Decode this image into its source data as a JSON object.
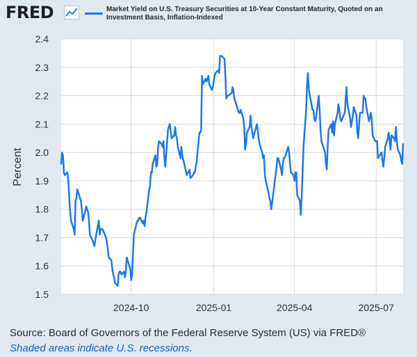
{
  "brand": {
    "name": "FRED"
  },
  "legend": {
    "label": "Market Yield on U.S. Treasury Securities at 10-Year Constant Maturity, Quoted on an Investment Basis, Inflation-Indexed",
    "color": "#1f77e8"
  },
  "footer": {
    "source": "Source: Board of Governors of the Federal Reserve System (US) via FRED®",
    "note": "Shaded areas indicate U.S. recessions."
  },
  "chart_data": {
    "type": "line",
    "ylabel": "Percent",
    "xlabel": "",
    "ylim": [
      1.5,
      2.4
    ],
    "yticks": [
      1.5,
      1.6,
      1.7,
      1.8,
      1.9,
      2.0,
      2.1,
      2.2,
      2.3,
      2.4
    ],
    "xlim": [
      "2024-07-15",
      "2025-07-31"
    ],
    "xticks": [
      "2024-10-01",
      "2025-01-01",
      "2025-04-01",
      "2025-07-01"
    ],
    "xtick_labels": [
      "2024-10",
      "2025-01",
      "2025-04",
      "2025-07"
    ],
    "grid": true,
    "series": [
      {
        "name": "Market Yield on U.S. Treasury Securities at 10-Year Constant Maturity, Quoted on an Investment Basis, Inflation-Indexed",
        "color": "#1f77e8",
        "points": [
          [
            "2024-07-15",
            1.96
          ],
          [
            "2024-07-16",
            2.0
          ],
          [
            "2024-07-17",
            1.99
          ],
          [
            "2024-07-18",
            1.93
          ],
          [
            "2024-07-19",
            1.92
          ],
          [
            "2024-07-22",
            1.93
          ],
          [
            "2024-07-23",
            1.9
          ],
          [
            "2024-07-24",
            1.84
          ],
          [
            "2024-07-25",
            1.79
          ],
          [
            "2024-07-26",
            1.76
          ],
          [
            "2024-07-29",
            1.73
          ],
          [
            "2024-07-30",
            1.71
          ],
          [
            "2024-07-31",
            1.83
          ],
          [
            "2024-08-01",
            1.84
          ],
          [
            "2024-08-02",
            1.87
          ],
          [
            "2024-08-05",
            1.84
          ],
          [
            "2024-08-06",
            1.83
          ],
          [
            "2024-08-07",
            1.8
          ],
          [
            "2024-08-08",
            1.76
          ],
          [
            "2024-08-09",
            1.77
          ],
          [
            "2024-08-12",
            1.81
          ],
          [
            "2024-08-13",
            1.8
          ],
          [
            "2024-08-14",
            1.79
          ],
          [
            "2024-08-15",
            1.76
          ],
          [
            "2024-08-16",
            1.71
          ],
          [
            "2024-08-19",
            1.69
          ],
          [
            "2024-08-20",
            1.68
          ],
          [
            "2024-08-21",
            1.67
          ],
          [
            "2024-08-22",
            1.69
          ],
          [
            "2024-08-23",
            1.71
          ],
          [
            "2024-08-26",
            1.76
          ],
          [
            "2024-08-27",
            1.71
          ],
          [
            "2024-08-28",
            1.73
          ],
          [
            "2024-08-29",
            1.73
          ],
          [
            "2024-08-30",
            1.73
          ],
          [
            "2024-09-03",
            1.7
          ],
          [
            "2024-09-04",
            1.68
          ],
          [
            "2024-09-05",
            1.66
          ],
          [
            "2024-09-06",
            1.63
          ],
          [
            "2024-09-09",
            1.62
          ],
          [
            "2024-09-10",
            1.59
          ],
          [
            "2024-09-11",
            1.57
          ],
          [
            "2024-09-12",
            1.56
          ],
          [
            "2024-09-13",
            1.54
          ],
          [
            "2024-09-16",
            1.53
          ],
          [
            "2024-09-17",
            1.57
          ],
          [
            "2024-09-18",
            1.58
          ],
          [
            "2024-09-19",
            1.58
          ],
          [
            "2024-09-20",
            1.57
          ],
          [
            "2024-09-23",
            1.58
          ],
          [
            "2024-09-24",
            1.56
          ],
          [
            "2024-09-25",
            1.58
          ],
          [
            "2024-09-26",
            1.63
          ],
          [
            "2024-09-27",
            1.62
          ],
          [
            "2024-09-30",
            1.59
          ],
          [
            "2024-10-01",
            1.55
          ],
          [
            "2024-10-02",
            1.57
          ],
          [
            "2024-10-03",
            1.64
          ],
          [
            "2024-10-04",
            1.71
          ],
          [
            "2024-10-07",
            1.75
          ],
          [
            "2024-10-08",
            1.76
          ],
          [
            "2024-10-09",
            1.76
          ],
          [
            "2024-10-10",
            1.77
          ],
          [
            "2024-10-11",
            1.77
          ],
          [
            "2024-10-14",
            1.75
          ],
          [
            "2024-10-15",
            1.76
          ],
          [
            "2024-10-16",
            1.74
          ],
          [
            "2024-10-17",
            1.77
          ],
          [
            "2024-10-18",
            1.79
          ],
          [
            "2024-10-21",
            1.87
          ],
          [
            "2024-10-22",
            1.88
          ],
          [
            "2024-10-23",
            1.93
          ],
          [
            "2024-10-24",
            1.93
          ],
          [
            "2024-10-25",
            1.96
          ],
          [
            "2024-10-28",
            1.99
          ],
          [
            "2024-10-29",
            1.95
          ],
          [
            "2024-10-30",
            1.96
          ],
          [
            "2024-10-31",
            2.02
          ],
          [
            "2024-11-01",
            2.04
          ],
          [
            "2024-11-04",
            2.03
          ],
          [
            "2024-11-05",
            2.02
          ],
          [
            "2024-11-06",
            2.04
          ],
          [
            "2024-11-07",
            1.98
          ],
          [
            "2024-11-08",
            1.95
          ],
          [
            "2024-11-11",
            2.08
          ],
          [
            "2024-11-12",
            2.09
          ],
          [
            "2024-11-13",
            2.1
          ],
          [
            "2024-11-14",
            2.08
          ],
          [
            "2024-11-15",
            2.05
          ],
          [
            "2024-11-18",
            2.06
          ],
          [
            "2024-11-19",
            2.09
          ],
          [
            "2024-11-20",
            2.06
          ],
          [
            "2024-11-21",
            2.05
          ],
          [
            "2024-11-22",
            2.02
          ],
          [
            "2024-11-25",
            1.98
          ],
          [
            "2024-11-26",
            2.02
          ],
          [
            "2024-11-27",
            1.99
          ],
          [
            "2024-12-02",
            1.92
          ],
          [
            "2024-12-03",
            1.93
          ],
          [
            "2024-12-04",
            1.93
          ],
          [
            "2024-12-05",
            1.94
          ],
          [
            "2024-12-06",
            1.91
          ],
          [
            "2024-12-09",
            1.92
          ],
          [
            "2024-12-10",
            1.93
          ],
          [
            "2024-12-11",
            1.93
          ],
          [
            "2024-12-12",
            1.95
          ],
          [
            "2024-12-13",
            1.97
          ],
          [
            "2024-12-16",
            2.07
          ],
          [
            "2024-12-17",
            2.07
          ],
          [
            "2024-12-18",
            2.08
          ],
          [
            "2024-12-19",
            2.27
          ],
          [
            "2024-12-20",
            2.24
          ],
          [
            "2024-12-23",
            2.26
          ],
          [
            "2024-12-24",
            2.25
          ],
          [
            "2024-12-26",
            2.27
          ],
          [
            "2024-12-27",
            2.24
          ],
          [
            "2024-12-30",
            2.22
          ],
          [
            "2024-12-31",
            2.23
          ],
          [
            "2025-01-02",
            2.27
          ],
          [
            "2025-01-03",
            2.28
          ],
          [
            "2025-01-06",
            2.29
          ],
          [
            "2025-01-07",
            2.28
          ],
          [
            "2025-01-08",
            2.34
          ],
          [
            "2025-01-09",
            2.34
          ],
          [
            "2025-01-10",
            2.34
          ],
          [
            "2025-01-13",
            2.33
          ],
          [
            "2025-01-14",
            2.27
          ],
          [
            "2025-01-15",
            2.19
          ],
          [
            "2025-01-16",
            2.2
          ],
          [
            "2025-01-17",
            2.2
          ],
          [
            "2025-01-21",
            2.21
          ],
          [
            "2025-01-22",
            2.23
          ],
          [
            "2025-01-23",
            2.22
          ],
          [
            "2025-01-24",
            2.19
          ],
          [
            "2025-01-27",
            2.16
          ],
          [
            "2025-01-28",
            2.15
          ],
          [
            "2025-01-29",
            2.14
          ],
          [
            "2025-01-30",
            2.14
          ],
          [
            "2025-01-31",
            2.15
          ],
          [
            "2025-02-03",
            2.12
          ],
          [
            "2025-02-04",
            2.09
          ],
          [
            "2025-02-05",
            2.01
          ],
          [
            "2025-02-06",
            2.03
          ],
          [
            "2025-02-07",
            2.07
          ],
          [
            "2025-02-10",
            2.09
          ],
          [
            "2025-02-11",
            2.13
          ],
          [
            "2025-02-12",
            2.09
          ],
          [
            "2025-02-13",
            2.07
          ],
          [
            "2025-02-14",
            2.05
          ],
          [
            "2025-02-18",
            2.1
          ],
          [
            "2025-02-19",
            2.08
          ],
          [
            "2025-02-20",
            2.05
          ],
          [
            "2025-02-21",
            2.03
          ],
          [
            "2025-02-24",
            2.0
          ],
          [
            "2025-02-25",
            1.98
          ],
          [
            "2025-02-26",
            1.99
          ],
          [
            "2025-02-27",
            1.92
          ],
          [
            "2025-02-28",
            1.9
          ],
          [
            "2025-03-03",
            1.86
          ],
          [
            "2025-03-04",
            1.84
          ],
          [
            "2025-03-05",
            1.83
          ],
          [
            "2025-03-06",
            1.8
          ],
          [
            "2025-03-07",
            1.82
          ],
          [
            "2025-03-10",
            1.9
          ],
          [
            "2025-03-11",
            1.92
          ],
          [
            "2025-03-12",
            1.95
          ],
          [
            "2025-03-13",
            1.98
          ],
          [
            "2025-03-14",
            1.98
          ],
          [
            "2025-03-17",
            1.94
          ],
          [
            "2025-03-18",
            1.92
          ],
          [
            "2025-03-19",
            1.96
          ],
          [
            "2025-03-20",
            1.98
          ],
          [
            "2025-03-21",
            1.98
          ],
          [
            "2025-03-24",
            2.01
          ],
          [
            "2025-03-25",
            2.02
          ],
          [
            "2025-03-26",
            2.0
          ],
          [
            "2025-03-27",
            1.96
          ],
          [
            "2025-03-28",
            1.93
          ],
          [
            "2025-03-31",
            1.92
          ],
          [
            "2025-04-01",
            1.9
          ],
          [
            "2025-04-02",
            1.93
          ],
          [
            "2025-04-03",
            1.93
          ],
          [
            "2025-04-04",
            1.85
          ],
          [
            "2025-04-07",
            1.83
          ],
          [
            "2025-04-08",
            1.78
          ],
          [
            "2025-04-09",
            1.85
          ],
          [
            "2025-04-10",
            1.93
          ],
          [
            "2025-04-11",
            2.02
          ],
          [
            "2025-04-14",
            2.15
          ],
          [
            "2025-04-15",
            2.24
          ],
          [
            "2025-04-16",
            2.28
          ],
          [
            "2025-04-17",
            2.22
          ],
          [
            "2025-04-21",
            2.15
          ],
          [
            "2025-04-22",
            2.15
          ],
          [
            "2025-04-23",
            2.12
          ],
          [
            "2025-04-24",
            2.11
          ],
          [
            "2025-04-25",
            2.12
          ],
          [
            "2025-04-28",
            2.2
          ],
          [
            "2025-04-29",
            2.15
          ],
          [
            "2025-04-30",
            2.08
          ],
          [
            "2025-05-01",
            2.04
          ],
          [
            "2025-05-02",
            2.03
          ],
          [
            "2025-05-05",
            2.0
          ],
          [
            "2025-05-06",
            1.96
          ],
          [
            "2025-05-07",
            1.94
          ],
          [
            "2025-05-08",
            2.02
          ],
          [
            "2025-05-09",
            2.08
          ],
          [
            "2025-05-12",
            2.1
          ],
          [
            "2025-05-13",
            2.07
          ],
          [
            "2025-05-14",
            2.11
          ],
          [
            "2025-05-15",
            2.06
          ],
          [
            "2025-05-16",
            2.1
          ],
          [
            "2025-05-19",
            2.14
          ],
          [
            "2025-05-20",
            2.17
          ],
          [
            "2025-05-21",
            2.15
          ],
          [
            "2025-05-22",
            2.12
          ],
          [
            "2025-05-23",
            2.11
          ],
          [
            "2025-05-27",
            2.14
          ],
          [
            "2025-05-28",
            2.19
          ],
          [
            "2025-05-29",
            2.23
          ],
          [
            "2025-05-30",
            2.17
          ],
          [
            "2025-06-02",
            2.12
          ],
          [
            "2025-06-03",
            2.09
          ],
          [
            "2025-06-04",
            2.11
          ],
          [
            "2025-06-05",
            2.13
          ],
          [
            "2025-06-06",
            2.16
          ],
          [
            "2025-06-09",
            2.13
          ],
          [
            "2025-06-10",
            2.07
          ],
          [
            "2025-06-11",
            2.05
          ],
          [
            "2025-06-12",
            2.1
          ],
          [
            "2025-06-13",
            2.14
          ],
          [
            "2025-06-16",
            2.14
          ],
          [
            "2025-06-17",
            2.2
          ],
          [
            "2025-06-18",
            2.19
          ],
          [
            "2025-06-19",
            2.19
          ],
          [
            "2025-06-20",
            2.16
          ],
          [
            "2025-06-23",
            2.11
          ],
          [
            "2025-06-24",
            2.12
          ],
          [
            "2025-06-25",
            2.14
          ],
          [
            "2025-06-26",
            2.12
          ],
          [
            "2025-06-27",
            2.06
          ],
          [
            "2025-06-30",
            2.04
          ],
          [
            "2025-07-01",
            2.04
          ],
          [
            "2025-07-02",
            2.04
          ],
          [
            "2025-07-03",
            1.98
          ],
          [
            "2025-07-07",
            2.0
          ],
          [
            "2025-07-08",
            1.97
          ],
          [
            "2025-07-09",
            1.95
          ],
          [
            "2025-07-10",
            1.98
          ],
          [
            "2025-07-11",
            2.02
          ],
          [
            "2025-07-14",
            2.05
          ],
          [
            "2025-07-15",
            2.07
          ],
          [
            "2025-07-16",
            2.04
          ],
          [
            "2025-07-17",
            2.01
          ],
          [
            "2025-07-18",
            2.06
          ],
          [
            "2025-07-21",
            2.05
          ],
          [
            "2025-07-22",
            2.04
          ],
          [
            "2025-07-23",
            2.09
          ],
          [
            "2025-07-24",
            2.04
          ],
          [
            "2025-07-25",
            2.01
          ],
          [
            "2025-07-28",
            1.99
          ],
          [
            "2025-07-29",
            1.97
          ],
          [
            "2025-07-30",
            1.96
          ],
          [
            "2025-07-31",
            2.03
          ]
        ]
      }
    ]
  }
}
